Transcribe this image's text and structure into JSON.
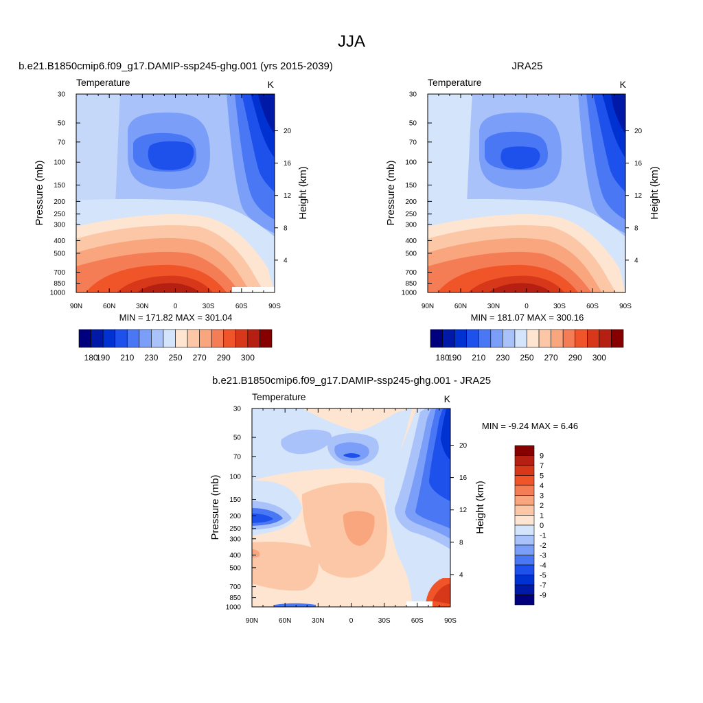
{
  "page": {
    "title": "JJA"
  },
  "colors": {
    "temp_palette": [
      "#00007f",
      "#0019a6",
      "#0032d2",
      "#1e50ec",
      "#4a78f5",
      "#7b9ff8",
      "#a9c2f9",
      "#d4e4fb",
      "#fde5d2",
      "#fcc7a6",
      "#f9a57e",
      "#f57d55",
      "#ef5528",
      "#d8381a",
      "#b52012",
      "#870000"
    ],
    "diff_palette": [
      "#870000",
      "#b52012",
      "#d8381a",
      "#ef5528",
      "#f57d55",
      "#f9a57e",
      "#fcc7a6",
      "#fde5d2",
      "#d4e4fb",
      "#a9c2f9",
      "#7b9ff8",
      "#4a78f5",
      "#1e50ec",
      "#0032d2",
      "#0019a6",
      "#00007f"
    ]
  },
  "chart_data": [
    {
      "type": "contour",
      "panel": "model",
      "title": "b.e21.B1850cmip6.f09_g17.DAMIP-ssp245-ghg.001 (yrs 2015-2039)",
      "left_string": "Temperature",
      "right_string": "K",
      "xlabel": "",
      "ylabel": "Pressure (mb)",
      "y2label": "Height (km)",
      "x_ticks": [
        "90N",
        "60N",
        "30N",
        "0",
        "30S",
        "60S",
        "90S"
      ],
      "y_ticks": [
        "30",
        "50",
        "70",
        "100",
        "150",
        "200",
        "250",
        "300",
        "400",
        "500",
        "700",
        "850",
        "1000"
      ],
      "y2_ticks": [
        "20",
        "16",
        "12",
        "8",
        "4"
      ],
      "stats": "MIN = 171.82  MAX = 301.04",
      "colorbar_labels": [
        "180",
        "190",
        "210",
        "230",
        "250",
        "270",
        "290",
        "300"
      ],
      "ylim": [
        1000,
        30
      ],
      "xlim": [
        90,
        -90
      ]
    },
    {
      "type": "contour",
      "panel": "obs",
      "title": "JRA25",
      "left_string": "Temperature",
      "right_string": "K",
      "xlabel": "",
      "ylabel": "Pressure (mb)",
      "y2label": "Height (km)",
      "x_ticks": [
        "90N",
        "60N",
        "30N",
        "0",
        "30S",
        "60S",
        "90S"
      ],
      "y_ticks": [
        "30",
        "50",
        "70",
        "100",
        "150",
        "200",
        "250",
        "300",
        "400",
        "500",
        "700",
        "850",
        "1000"
      ],
      "y2_ticks": [
        "20",
        "16",
        "12",
        "8",
        "4"
      ],
      "stats": "MIN = 181.07  MAX = 300.16",
      "colorbar_labels": [
        "180",
        "190",
        "210",
        "230",
        "250",
        "270",
        "290",
        "300"
      ],
      "ylim": [
        1000,
        30
      ],
      "xlim": [
        90,
        -90
      ]
    },
    {
      "type": "contour",
      "panel": "diff",
      "title": "b.e21.B1850cmip6.f09_g17.DAMIP-ssp245-ghg.001 - JRA25",
      "left_string": "Temperature",
      "right_string": "K",
      "xlabel": "",
      "ylabel": "Pressure (mb)",
      "y2label": "Height (km)",
      "x_ticks": [
        "90N",
        "60N",
        "30N",
        "0",
        "30S",
        "60S",
        "90S"
      ],
      "y_ticks": [
        "30",
        "50",
        "70",
        "100",
        "150",
        "200",
        "250",
        "300",
        "400",
        "500",
        "700",
        "850",
        "1000"
      ],
      "y2_ticks": [
        "20",
        "16",
        "12",
        "8",
        "4"
      ],
      "stats": "MIN =  -9.24  MAX =   6.46",
      "colorbar_labels": [
        "9",
        "7",
        "5",
        "4",
        "3",
        "2",
        "1",
        "0",
        "-1",
        "-2",
        "-3",
        "-4",
        "-5",
        "-7",
        "-9"
      ],
      "ylim": [
        1000,
        30
      ],
      "xlim": [
        90,
        -90
      ]
    }
  ]
}
